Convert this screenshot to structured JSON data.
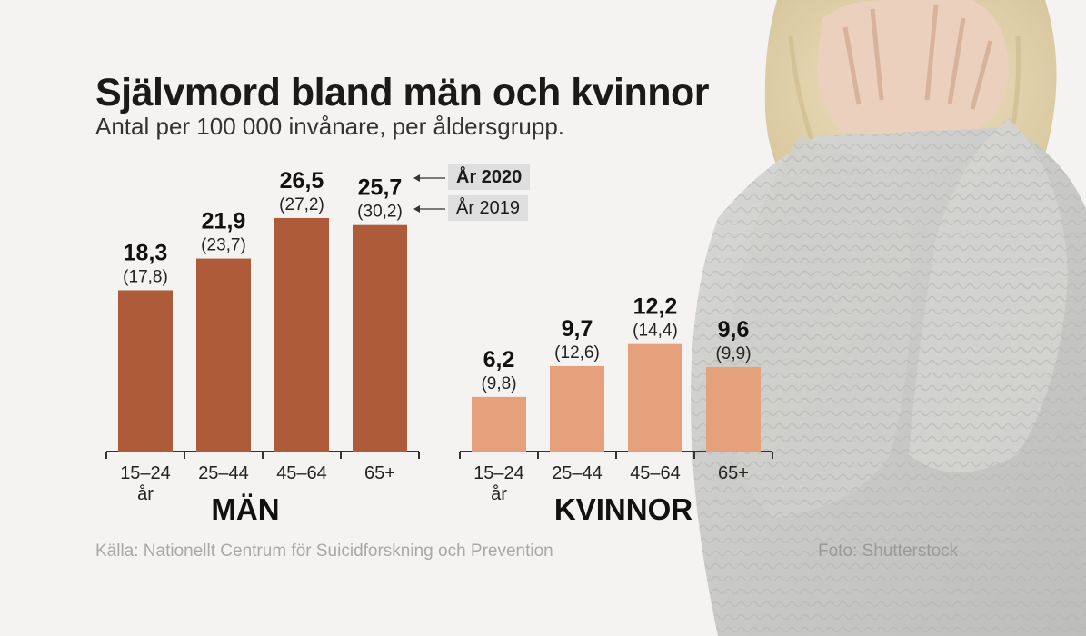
{
  "title": "Självmord bland män och kvinnor",
  "subtitle": "Antal per 100 000 invånare, per åldersgrupp.",
  "legend": {
    "year_2020": "År 2020",
    "year_2019": "År 2019"
  },
  "source": "Källa: Nationellt Centrum för Suicidforskning och Prevention",
  "photo_credit": "Foto: Shutterstock",
  "colors": {
    "men": "#ad5b38",
    "women": "#e5a17b",
    "axis": "#333333"
  },
  "chart_data": {
    "type": "bar",
    "categories": [
      "15–24",
      "25–44",
      "45–64",
      "65+"
    ],
    "category_unit": "år",
    "panels": [
      {
        "label": "MÄN",
        "series": [
          {
            "name": "År 2020",
            "values": [
              18.3,
              21.9,
              26.5,
              25.7
            ],
            "labels": [
              "18,3",
              "21,9",
              "26,5",
              "25,7"
            ]
          },
          {
            "name": "År 2019",
            "values": [
              17.8,
              23.7,
              27.2,
              30.2
            ],
            "labels": [
              "(17,8)",
              "(23,7)",
              "(27,2)",
              "(30,2)"
            ]
          }
        ]
      },
      {
        "label": "KVINNOR",
        "series": [
          {
            "name": "År 2020",
            "values": [
              6.2,
              9.7,
              12.2,
              9.6
            ],
            "labels": [
              "6,2",
              "9,7",
              "12,2",
              "9,6"
            ]
          },
          {
            "name": "År 2019",
            "values": [
              9.8,
              12.6,
              14.4,
              9.9
            ],
            "labels": [
              "(9,8)",
              "(12,6)",
              "(14,4)",
              "(9,9)"
            ]
          }
        ]
      }
    ],
    "ylim": [
      0,
      30
    ]
  }
}
